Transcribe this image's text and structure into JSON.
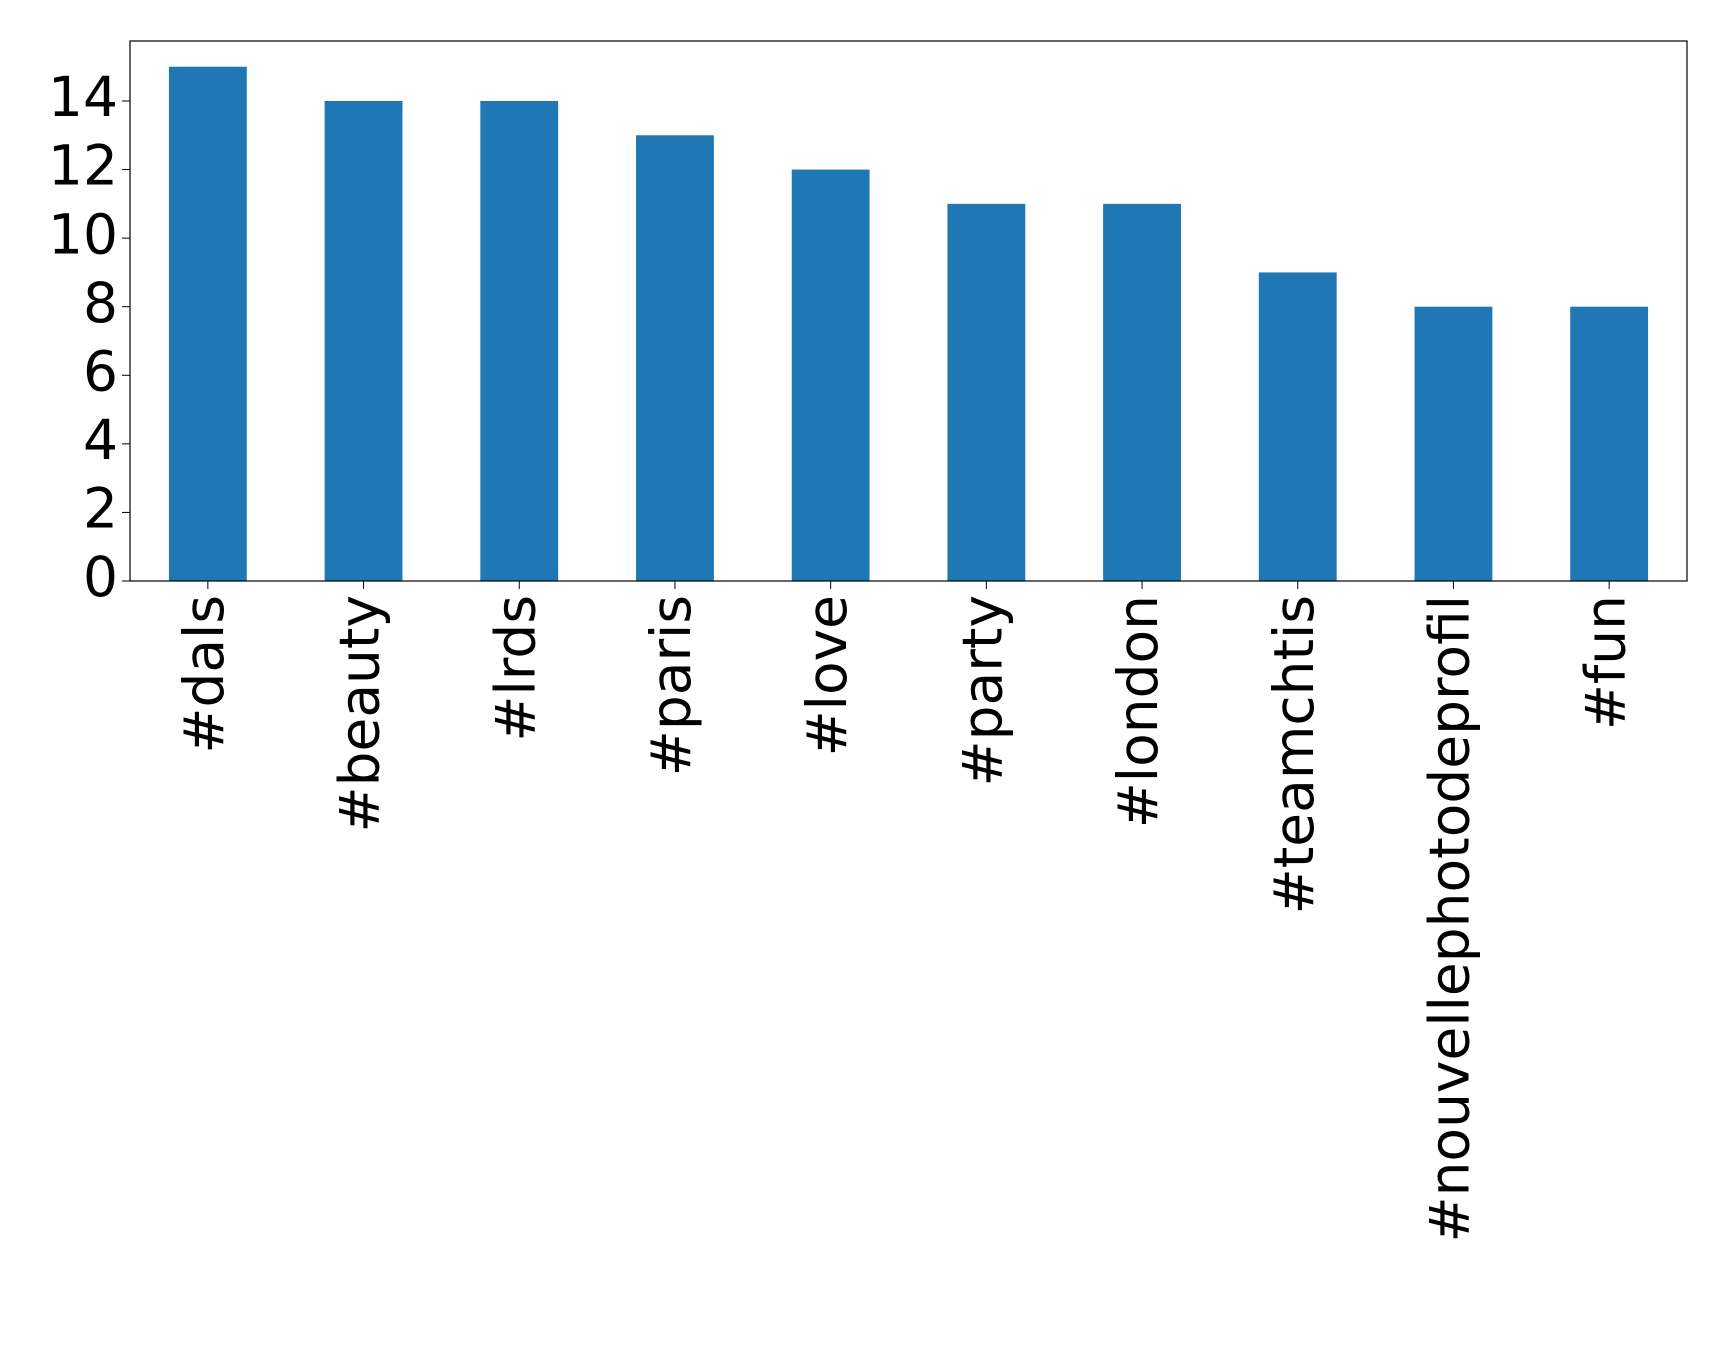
{
  "chart_data": {
    "type": "bar",
    "categories": [
      "#dals",
      "#beauty",
      "#lrds",
      "#paris",
      "#love",
      "#party",
      "#london",
      "#teamchtis",
      "#nouvellephotodeprofil",
      "#fun"
    ],
    "values": [
      15,
      14,
      14,
      13,
      12,
      11,
      11,
      9,
      8,
      8
    ],
    "color": "#1f77b4",
    "ylim": [
      0,
      15.75
    ],
    "yticks": [
      0,
      2,
      4,
      6,
      8,
      10,
      12,
      14
    ],
    "grid": false
  }
}
